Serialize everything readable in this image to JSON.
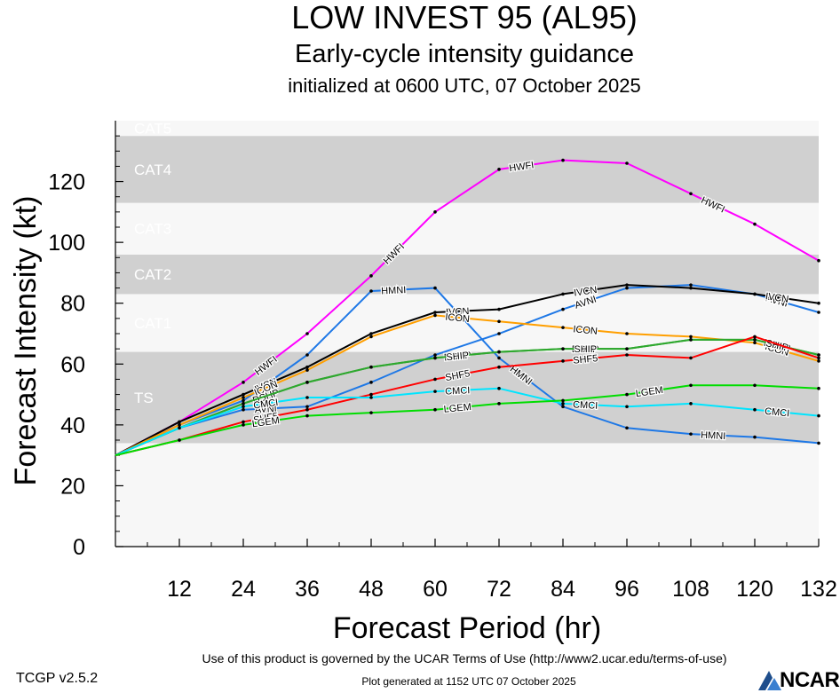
{
  "header": {
    "title": "LOW INVEST 95 (AL95)",
    "subtitle": "Early-cycle intensity guidance",
    "init": "initialized at 0600 UTC, 07 October 2025"
  },
  "footer": {
    "version": "TCGP v2.5.2",
    "terms": "Use of this product is governed by the UCAR Terms of Use (http://www2.ucar.edu/terms-of-use)",
    "generated": "Plot generated at 1152 UTC   07 October 2025",
    "logo_text": "NCAR"
  },
  "chart_data": {
    "type": "line",
    "xlabel": "Forecast Period (hr)",
    "ylabel": "Forecast Intensity (kt)",
    "xlim": [
      0,
      132
    ],
    "ylim": [
      0,
      140
    ],
    "xticks": [
      12,
      24,
      36,
      48,
      60,
      72,
      84,
      96,
      108,
      120,
      132
    ],
    "yticks": [
      0,
      20,
      40,
      60,
      80,
      100,
      120
    ],
    "grid": false,
    "bands": [
      {
        "label": "TS",
        "from": 34,
        "to": 64,
        "fill": "#d0d0d0"
      },
      {
        "label": "CAT1",
        "from": 64,
        "to": 83,
        "fill": "#f7f7f7"
      },
      {
        "label": "CAT2",
        "from": 83,
        "to": 96,
        "fill": "#d0d0d0"
      },
      {
        "label": "CAT3",
        "from": 96,
        "to": 113,
        "fill": "#f7f7f7"
      },
      {
        "label": "CAT4",
        "from": 113,
        "to": 135,
        "fill": "#d0d0d0"
      },
      {
        "label": "CAT5",
        "from": 135,
        "to": 140,
        "fill": "#f7f7f7"
      }
    ],
    "below_band_fill": "#f7f7f7",
    "series": [
      {
        "name": "HWFI",
        "color": "#ff00ff",
        "x": [
          0,
          12,
          24,
          36,
          48,
          60,
          72,
          84,
          96,
          108,
          120,
          132
        ],
        "y": [
          30,
          41,
          54,
          70,
          89,
          110,
          124,
          127,
          126,
          116,
          106,
          94
        ],
        "labels_at": [
          24,
          48,
          72,
          108
        ]
      },
      {
        "name": "HMNI",
        "color": "#1e78e6",
        "x": [
          0,
          12,
          24,
          36,
          48,
          60,
          72,
          84,
          96,
          108,
          120,
          132
        ],
        "y": [
          30,
          40,
          48,
          63,
          84,
          85,
          62,
          46,
          39,
          37,
          36,
          34
        ],
        "labels_at": [
          48,
          72,
          108
        ]
      },
      {
        "name": "AVNI",
        "color": "#1e78e6",
        "x": [
          0,
          12,
          24,
          36,
          48,
          60,
          72,
          84,
          96,
          108,
          120,
          132
        ],
        "y": [
          30,
          39,
          45,
          46,
          54,
          63,
          70,
          78,
          85,
          86,
          83,
          77
        ],
        "labels_at": [
          24,
          84,
          120
        ]
      },
      {
        "name": "IVCN",
        "color": "#000000",
        "x": [
          0,
          12,
          24,
          36,
          48,
          60,
          72,
          84,
          96,
          108,
          120,
          132
        ],
        "y": [
          30,
          41,
          50,
          59,
          70,
          77,
          78,
          83,
          86,
          85,
          83,
          80
        ],
        "labels_at": [
          24,
          60,
          84,
          120
        ]
      },
      {
        "name": "ICON",
        "color": "#ff9f00",
        "x": [
          0,
          12,
          24,
          36,
          48,
          60,
          72,
          84,
          96,
          108,
          120,
          132
        ],
        "y": [
          30,
          40,
          49,
          58,
          69,
          76,
          74,
          72,
          70,
          69,
          67,
          61
        ],
        "labels_at": [
          24,
          60,
          84,
          120
        ]
      },
      {
        "name": "DSHP",
        "color": "#2ea82e",
        "x": [
          0,
          12,
          24,
          36,
          48,
          60,
          72,
          84,
          96,
          108,
          120,
          132
        ],
        "y": [
          30,
          39,
          47,
          54,
          59,
          62,
          64,
          65,
          65,
          68,
          68,
          63
        ],
        "labels_at": [
          24,
          60,
          84,
          120
        ]
      },
      {
        "name": "SHIP",
        "color": "#2ea82e",
        "x": [
          0,
          12,
          24,
          36,
          48,
          60,
          72,
          84,
          96,
          108,
          120,
          132
        ],
        "y": [
          30,
          39,
          47,
          54,
          59,
          62,
          64,
          65,
          65,
          68,
          68,
          63
        ],
        "labels_at": [
          60,
          84,
          120
        ]
      },
      {
        "name": "SHF5",
        "color": "#ff0000",
        "x": [
          0,
          12,
          24,
          36,
          48,
          60,
          72,
          84,
          96,
          108,
          120,
          132
        ],
        "y": [
          30,
          35,
          41,
          45,
          50,
          55,
          59,
          61,
          63,
          62,
          69,
          62
        ],
        "labels_at": [
          24,
          60,
          84
        ]
      },
      {
        "name": "CMCI",
        "color": "#00e5ff",
        "x": [
          0,
          12,
          24,
          36,
          48,
          60,
          72,
          84,
          96,
          108,
          120,
          132
        ],
        "y": [
          30,
          39,
          46,
          49,
          49,
          51,
          52,
          47,
          46,
          47,
          45,
          43
        ],
        "labels_at": [
          24,
          60,
          84,
          120
        ]
      },
      {
        "name": "LGEM",
        "color": "#00dd00",
        "x": [
          0,
          12,
          24,
          36,
          48,
          60,
          72,
          84,
          96,
          108,
          120,
          132
        ],
        "y": [
          30,
          35,
          40,
          43,
          44,
          45,
          47,
          48,
          50,
          53,
          53,
          52
        ],
        "labels_at": [
          24,
          60,
          96
        ]
      }
    ]
  }
}
